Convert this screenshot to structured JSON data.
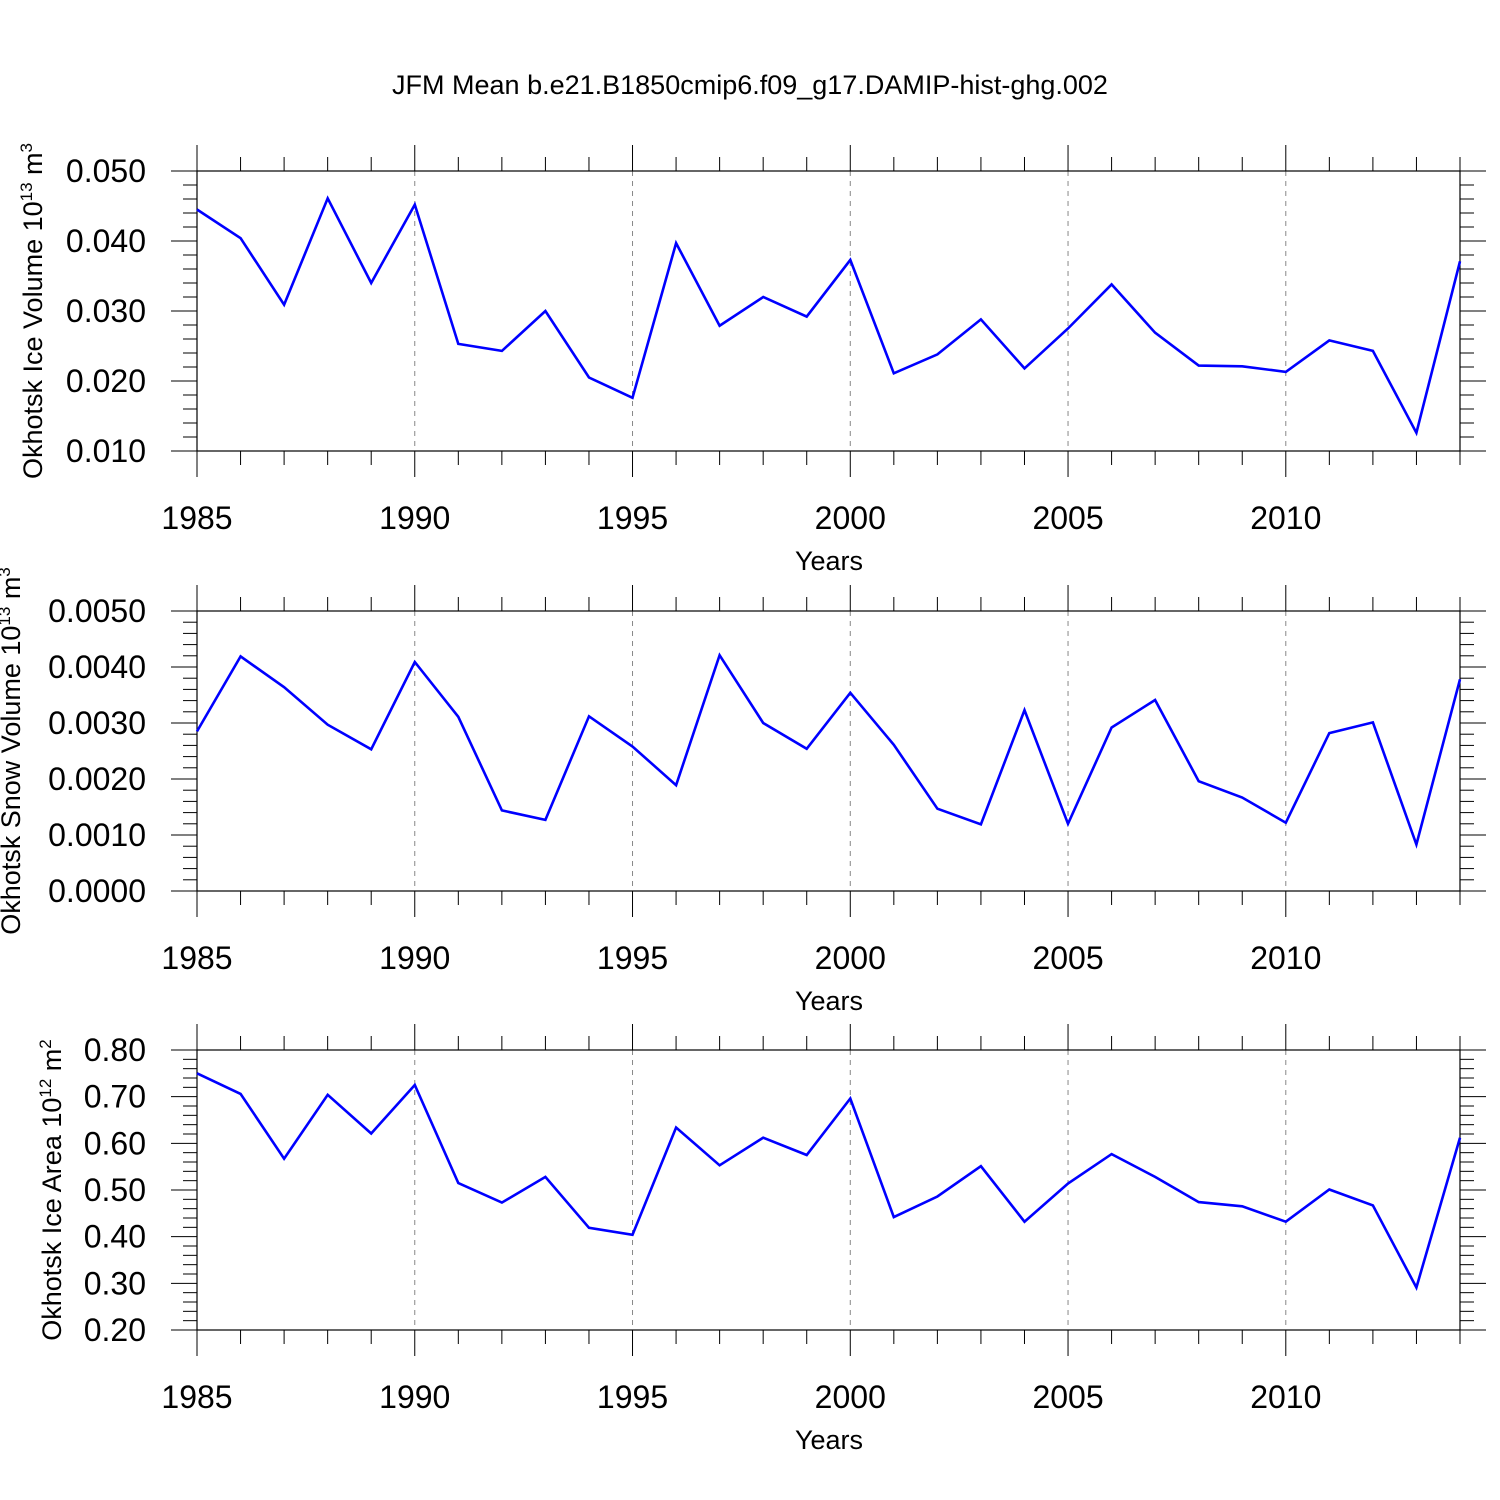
{
  "title": "JFM Mean b.e21.B1850cmip6.f09_g17.DAMIP-hist-ghg.002",
  "chart_data": [
    {
      "type": "line",
      "title": "",
      "xlabel": "Years",
      "ylabel_text": "Okhotsk Ice Volume 10",
      "ylabel_sup1": "13",
      "ylabel_unit": " m",
      "ylabel_sup2": "3",
      "xlim": [
        1985,
        2014
      ],
      "ylim": [
        0.01,
        0.05
      ],
      "x_ticks": [
        "1985",
        "1990",
        "1995",
        "2000",
        "2005",
        "2010"
      ],
      "y_ticks": [
        "0.010",
        "0.020",
        "0.030",
        "0.040",
        "0.050"
      ],
      "y_tick_values": [
        0.01,
        0.02,
        0.03,
        0.04,
        0.05
      ],
      "line_color": "#0000ff",
      "x": [
        1985,
        1986,
        1987,
        1988,
        1989,
        1990,
        1991,
        1992,
        1993,
        1994,
        1995,
        1996,
        1997,
        1998,
        1999,
        2000,
        2001,
        2002,
        2003,
        2004,
        2005,
        2006,
        2007,
        2008,
        2009,
        2010,
        2011,
        2012,
        2013,
        2014
      ],
      "values": [
        0.0445,
        0.0404,
        0.0309,
        0.0461,
        0.034,
        0.0452,
        0.0253,
        0.0243,
        0.03,
        0.0205,
        0.0176,
        0.0397,
        0.0279,
        0.032,
        0.0292,
        0.0373,
        0.0211,
        0.0238,
        0.0288,
        0.0218,
        0.0275,
        0.0338,
        0.0269,
        0.0222,
        0.0221,
        0.0213,
        0.0258,
        0.0243,
        0.0126,
        0.0371
      ]
    },
    {
      "type": "line",
      "title": "",
      "xlabel": "Years",
      "ylabel_text": "Okhotsk Snow Volume 10",
      "ylabel_sup1": "13",
      "ylabel_unit": " m",
      "ylabel_sup2": "3",
      "xlim": [
        1985,
        2014
      ],
      "ylim": [
        0.0,
        0.005
      ],
      "x_ticks": [
        "1985",
        "1990",
        "1995",
        "2000",
        "2005",
        "2010"
      ],
      "y_ticks": [
        "0.0000",
        "0.0010",
        "0.0020",
        "0.0030",
        "0.0040",
        "0.0050"
      ],
      "y_tick_values": [
        0.0,
        0.001,
        0.002,
        0.003,
        0.004,
        0.005
      ],
      "line_color": "#0000ff",
      "x": [
        1985,
        1986,
        1987,
        1988,
        1989,
        1990,
        1991,
        1992,
        1993,
        1994,
        1995,
        1996,
        1997,
        1998,
        1999,
        2000,
        2001,
        2002,
        2003,
        2004,
        2005,
        2006,
        2007,
        2008,
        2009,
        2010,
        2011,
        2012,
        2013,
        2014
      ],
      "values": [
        0.00285,
        0.00419,
        0.00364,
        0.00297,
        0.00253,
        0.00409,
        0.00311,
        0.00144,
        0.00127,
        0.00312,
        0.00258,
        0.00189,
        0.00421,
        0.003,
        0.00254,
        0.00354,
        0.00261,
        0.00147,
        0.00119,
        0.00323,
        0.0012,
        0.00292,
        0.00341,
        0.00196,
        0.00167,
        0.00122,
        0.00282,
        0.00301,
        0.00083,
        0.00378
      ]
    },
    {
      "type": "line",
      "title": "",
      "xlabel": "Years",
      "ylabel_text": "Okhotsk Ice Area 10",
      "ylabel_sup1": "12",
      "ylabel_unit": " m",
      "ylabel_sup2": "2",
      "xlim": [
        1985,
        2014
      ],
      "ylim": [
        0.2,
        0.8
      ],
      "x_ticks": [
        "1985",
        "1990",
        "1995",
        "2000",
        "2005",
        "2010"
      ],
      "y_ticks": [
        "0.20",
        "0.30",
        "0.40",
        "0.50",
        "0.60",
        "0.70",
        "0.80"
      ],
      "y_tick_values": [
        0.2,
        0.3,
        0.4,
        0.5,
        0.6,
        0.7,
        0.8
      ],
      "line_color": "#0000ff",
      "x": [
        1985,
        1986,
        1987,
        1988,
        1989,
        1990,
        1991,
        1992,
        1993,
        1994,
        1995,
        1996,
        1997,
        1998,
        1999,
        2000,
        2001,
        2002,
        2003,
        2004,
        2005,
        2006,
        2007,
        2008,
        2009,
        2010,
        2011,
        2012,
        2013,
        2014
      ],
      "values": [
        0.75,
        0.706,
        0.567,
        0.704,
        0.621,
        0.725,
        0.515,
        0.473,
        0.528,
        0.419,
        0.404,
        0.634,
        0.553,
        0.612,
        0.575,
        0.696,
        0.442,
        0.486,
        0.551,
        0.432,
        0.514,
        0.577,
        0.528,
        0.474,
        0.465,
        0.432,
        0.501,
        0.467,
        0.291,
        0.612
      ]
    }
  ]
}
